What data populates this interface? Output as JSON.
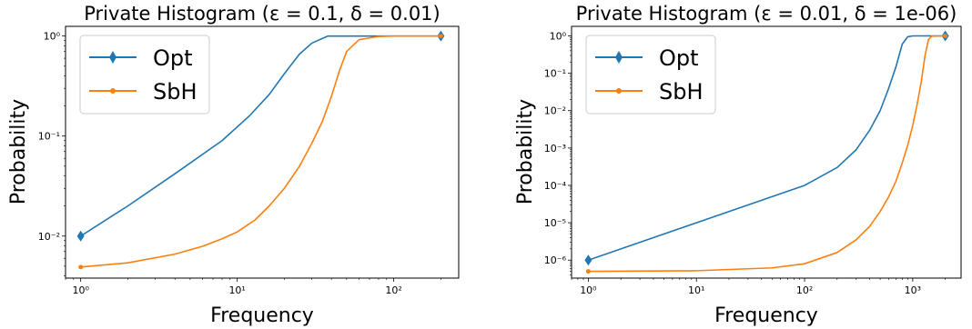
{
  "chart_data": [
    {
      "type": "line",
      "title": "Private Histogram (ε = 0.1, δ = 0.01)",
      "xlabel": "Frequency",
      "ylabel": "Probability",
      "xscale": "log",
      "yscale": "log",
      "xlim": [
        0.8,
        260
      ],
      "ylim": [
        0.0038,
        1.25
      ],
      "x_ticks": [
        1,
        10,
        100
      ],
      "x_tick_labels": [
        "10⁰",
        "10¹",
        "10²"
      ],
      "y_ticks": [
        0.01,
        0.1,
        1
      ],
      "y_tick_labels": [
        "10⁻²",
        "10⁻¹",
        "10⁰"
      ],
      "legend_position": "top-left",
      "grid": false,
      "series": [
        {
          "name": "Opt",
          "color": "#1f77b4",
          "marker": "diamond",
          "x": [
            1,
            2,
            4,
            8,
            12,
            16,
            20,
            25,
            30,
            38,
            50,
            80,
            120,
            200
          ],
          "y": [
            0.01,
            0.02,
            0.042,
            0.09,
            0.16,
            0.26,
            0.42,
            0.66,
            0.85,
            1.0,
            1.0,
            1.0,
            1.0,
            1.0
          ]
        },
        {
          "name": "SbH",
          "color": "#ff7f0e",
          "marker": "dot",
          "x": [
            1,
            2,
            4,
            6,
            8,
            10,
            13,
            16,
            20,
            25,
            30,
            35,
            40,
            45,
            50,
            60,
            80,
            100,
            150,
            200
          ],
          "y": [
            0.0049,
            0.0054,
            0.0066,
            0.0079,
            0.0094,
            0.011,
            0.0145,
            0.02,
            0.03,
            0.05,
            0.085,
            0.14,
            0.25,
            0.45,
            0.7,
            0.92,
            0.99,
            1.0,
            1.0,
            1.0
          ]
        }
      ]
    },
    {
      "type": "line",
      "title": "Private Histogram (ε = 0.01, δ = 1e-06)",
      "xlabel": "Frequency",
      "ylabel": "Probability",
      "xscale": "log",
      "yscale": "log",
      "xlim": [
        0.7,
        2800
      ],
      "ylim": [
        3.3e-07,
        1.8
      ],
      "x_ticks": [
        1,
        10,
        100,
        1000
      ],
      "x_tick_labels": [
        "10⁰",
        "10¹",
        "10²",
        "10³"
      ],
      "y_ticks": [
        1e-06,
        1e-05,
        0.0001,
        0.001,
        0.01,
        0.1,
        1
      ],
      "y_tick_labels": [
        "10⁻⁶",
        "10⁻⁵",
        "10⁻⁴",
        "10⁻³",
        "10⁻²",
        "10⁻¹",
        "10⁰"
      ],
      "legend_position": "top-left",
      "grid": false,
      "series": [
        {
          "name": "Opt",
          "color": "#1f77b4",
          "marker": "diamond",
          "x": [
            1,
            10,
            50,
            100,
            200,
            300,
            400,
            500,
            600,
            700,
            800,
            900,
            1000,
            1500,
            2000
          ],
          "y": [
            1e-06,
            1e-05,
            5e-05,
            0.0001,
            0.0003,
            0.0009,
            0.003,
            0.01,
            0.04,
            0.15,
            0.6,
            0.95,
            1.0,
            1.0,
            1.0
          ]
        },
        {
          "name": "SbH",
          "color": "#ff7f0e",
          "marker": "dot",
          "x": [
            1,
            10,
            50,
            100,
            200,
            300,
            400,
            500,
            600,
            700,
            800,
            900,
            1000,
            1100,
            1200,
            1300,
            1400,
            1500,
            2000
          ],
          "y": [
            5e-07,
            5.2e-07,
            6.2e-07,
            8e-07,
            1.6e-06,
            3.5e-06,
            8e-06,
            2e-05,
            5e-05,
            0.00013,
            0.0004,
            0.0012,
            0.004,
            0.015,
            0.06,
            0.3,
            0.8,
            0.98,
            1.0
          ]
        }
      ]
    }
  ]
}
